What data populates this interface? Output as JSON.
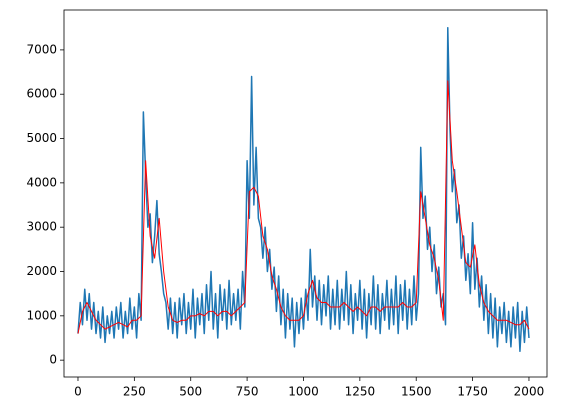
{
  "chart_data": {
    "type": "line",
    "series": [
      {
        "color": "#1f77b4",
        "x": [
          0,
          10,
          20,
          30,
          40,
          50,
          60,
          70,
          80,
          90,
          100,
          110,
          120,
          130,
          140,
          150,
          160,
          170,
          180,
          190,
          200,
          210,
          220,
          230,
          240,
          250,
          260,
          270,
          280,
          290,
          300,
          310,
          320,
          330,
          340,
          350,
          360,
          370,
          380,
          390,
          400,
          410,
          420,
          430,
          440,
          450,
          460,
          470,
          480,
          490,
          500,
          510,
          520,
          530,
          540,
          550,
          560,
          570,
          580,
          590,
          600,
          610,
          620,
          630,
          640,
          650,
          660,
          670,
          680,
          690,
          700,
          710,
          720,
          730,
          740,
          750,
          760,
          770,
          780,
          790,
          800,
          810,
          820,
          830,
          840,
          850,
          860,
          870,
          880,
          890,
          900,
          910,
          920,
          930,
          940,
          950,
          960,
          970,
          980,
          990,
          1000,
          1010,
          1020,
          1030,
          1040,
          1050,
          1060,
          1070,
          1080,
          1090,
          1100,
          1110,
          1120,
          1130,
          1140,
          1150,
          1160,
          1170,
          1180,
          1190,
          1200,
          1210,
          1220,
          1230,
          1240,
          1250,
          1260,
          1270,
          1280,
          1290,
          1300,
          1310,
          1320,
          1330,
          1340,
          1350,
          1360,
          1370,
          1380,
          1390,
          1400,
          1410,
          1420,
          1430,
          1440,
          1450,
          1460,
          1470,
          1480,
          1490,
          1500,
          1510,
          1520,
          1530,
          1540,
          1550,
          1560,
          1570,
          1580,
          1590,
          1600,
          1610,
          1620,
          1630,
          1640,
          1650,
          1660,
          1670,
          1680,
          1690,
          1700,
          1710,
          1720,
          1730,
          1740,
          1750,
          1760,
          1770,
          1780,
          1790,
          1800,
          1810,
          1820,
          1830,
          1840,
          1850,
          1860,
          1870,
          1880,
          1890,
          1900,
          1910,
          1920,
          1930,
          1940,
          1950,
          1960,
          1970,
          1980,
          1990,
          2000
        ],
        "values": [
          600,
          1300,
          800,
          1600,
          900,
          1500,
          700,
          1300,
          600,
          1100,
          500,
          1200,
          400,
          1000,
          600,
          1100,
          500,
          1200,
          700,
          1300,
          500,
          1100,
          600,
          1400,
          700,
          1200,
          500,
          1500,
          900,
          5600,
          4200,
          3000,
          3300,
          2200,
          2800,
          3600,
          2400,
          2000,
          1500,
          1300,
          700,
          1400,
          600,
          1300,
          500,
          1400,
          800,
          1500,
          600,
          1300,
          700,
          1600,
          500,
          1400,
          800,
          1500,
          600,
          1700,
          900,
          2000,
          700,
          1500,
          500,
          1700,
          900,
          1600,
          700,
          1800,
          800,
          1500,
          900,
          1600,
          700,
          2000,
          1200,
          4500,
          3200,
          6400,
          3500,
          4800,
          3200,
          3000,
          2300,
          3000,
          2000,
          2500,
          1600,
          2100,
          1100,
          1900,
          800,
          1600,
          500,
          1500,
          700,
          1400,
          300,
          1300,
          600,
          1400,
          700,
          1600,
          900,
          2500,
          1200,
          1900,
          900,
          1800,
          800,
          1700,
          1000,
          1900,
          700,
          1600,
          800,
          1800,
          700,
          1600,
          900,
          2000,
          800,
          1700,
          600,
          1500,
          900,
          1800,
          700,
          1600,
          500,
          1500,
          800,
          1900,
          700,
          1700,
          600,
          1500,
          900,
          1800,
          700,
          1600,
          800,
          1900,
          600,
          1700,
          900,
          1800,
          700,
          1600,
          800,
          1900,
          900,
          1500,
          4800,
          3200,
          3700,
          2500,
          3000,
          2000,
          2600,
          1500,
          2100,
          1200,
          1500,
          800,
          7500,
          5200,
          3800,
          4300,
          3100,
          3500,
          2300,
          2800,
          1800,
          2400,
          1500,
          3100,
          1600,
          2300,
          1200,
          1900,
          900,
          1700,
          600,
          1500,
          500,
          1400,
          300,
          1200,
          600,
          1300,
          400,
          1100,
          300,
          1200,
          500,
          1300,
          200,
          1100,
          400,
          1200,
          500
        ]
      },
      {
        "color": "#ff0000",
        "x": [
          0,
          20,
          40,
          60,
          80,
          100,
          120,
          140,
          160,
          180,
          200,
          220,
          240,
          260,
          280,
          300,
          320,
          340,
          360,
          380,
          400,
          420,
          440,
          460,
          480,
          500,
          520,
          540,
          560,
          580,
          600,
          620,
          640,
          660,
          680,
          700,
          720,
          740,
          760,
          780,
          800,
          820,
          840,
          860,
          880,
          900,
          920,
          940,
          960,
          980,
          1000,
          1020,
          1040,
          1060,
          1080,
          1100,
          1120,
          1140,
          1160,
          1180,
          1200,
          1220,
          1240,
          1260,
          1280,
          1300,
          1320,
          1340,
          1360,
          1380,
          1400,
          1420,
          1440,
          1460,
          1480,
          1500,
          1520,
          1540,
          1560,
          1580,
          1600,
          1620,
          1640,
          1660,
          1680,
          1700,
          1720,
          1740,
          1760,
          1780,
          1800,
          1820,
          1840,
          1860,
          1880,
          1900,
          1920,
          1940,
          1960,
          1980,
          2000
        ],
        "values": [
          600,
          1100,
          1300,
          1100,
          900,
          800,
          700,
          750,
          800,
          850,
          800,
          750,
          900,
          900,
          1000,
          4500,
          2800,
          2300,
          3200,
          2000,
          1200,
          900,
          850,
          900,
          900,
          1000,
          1000,
          1050,
          1000,
          1100,
          1100,
          1000,
          1100,
          1100,
          1000,
          1100,
          1200,
          1300,
          3800,
          3900,
          3700,
          2800,
          2500,
          1900,
          1600,
          1200,
          1000,
          900,
          900,
          900,
          1000,
          1500,
          1800,
          1400,
          1300,
          1300,
          1200,
          1200,
          1200,
          1300,
          1200,
          1100,
          1200,
          1100,
          1000,
          1200,
          1200,
          1100,
          1200,
          1200,
          1200,
          1200,
          1300,
          1200,
          1200,
          1300,
          3800,
          3200,
          2600,
          2300,
          1800,
          900,
          6300,
          4500,
          3800,
          3000,
          2200,
          2100,
          2600,
          1700,
          1300,
          1100,
          1000,
          900,
          900,
          900,
          850,
          800,
          800,
          900,
          700
        ]
      }
    ],
    "xlim": [
      -62,
      2080
    ],
    "xticks": [
      0,
      250,
      500,
      750,
      1000,
      1250,
      1500,
      1750,
      2000
    ],
    "ylim": [
      -380,
      7900
    ],
    "yticks": [
      0,
      1000,
      2000,
      3000,
      4000,
      5000,
      6000,
      7000
    ],
    "grid": false
  }
}
